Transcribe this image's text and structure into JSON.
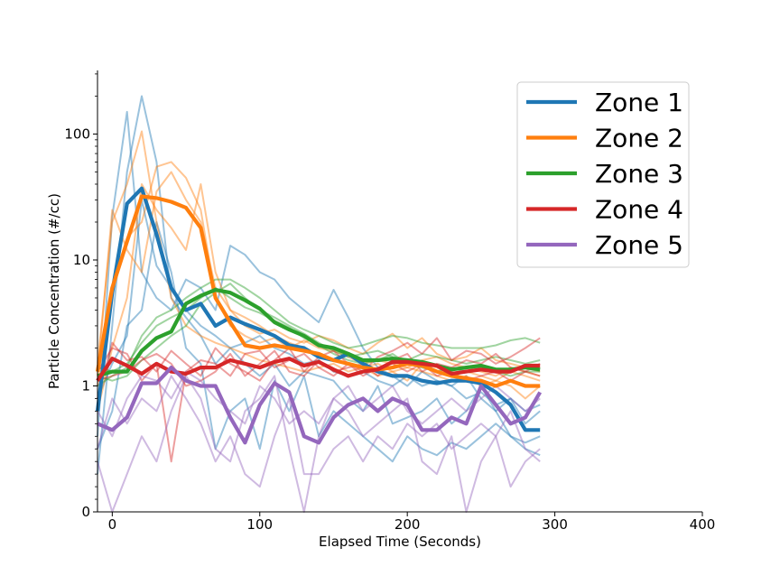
{
  "chart_data": {
    "type": "line",
    "title": "",
    "xlabel": "Elapsed Time (Seconds)",
    "ylabel": "Particle Concentration (#/cc)",
    "xlim": [
      -10,
      400
    ],
    "x_ticks": [
      0,
      100,
      200,
      300,
      400
    ],
    "x_tick_labels": [
      "0",
      "100",
      "200",
      "300",
      "400"
    ],
    "y_scale": "symlog",
    "y_linthresh": 1,
    "y_ticks": [
      0,
      1,
      10,
      100
    ],
    "y_tick_labels": [
      "0",
      "1",
      "10",
      "100"
    ],
    "ylim": [
      0,
      320
    ],
    "grid": false,
    "legend_position": "top-right",
    "x": [
      -10,
      0,
      10,
      20,
      30,
      40,
      50,
      60,
      70,
      80,
      90,
      100,
      110,
      120,
      130,
      140,
      150,
      160,
      170,
      180,
      190,
      200,
      210,
      220,
      230,
      240,
      250,
      260,
      270,
      280,
      290
    ],
    "series": [
      {
        "name": "Zone 1",
        "color": "#1f77b4",
        "values": [
          0.8,
          5.5,
          28,
          37,
          16,
          6,
          4,
          4.5,
          3,
          3.5,
          3.1,
          2.8,
          2.5,
          2.1,
          2.0,
          1.7,
          1.6,
          1.8,
          1.5,
          1.3,
          1.2,
          1.2,
          1.1,
          1.05,
          1.1,
          1.1,
          1.05,
          0.95,
          0.85,
          0.65,
          0.65
        ]
      },
      {
        "name": "Zone 2",
        "color": "#ff7f0e",
        "values": [
          1.3,
          6,
          14,
          32,
          31,
          29,
          26,
          18,
          5,
          3.2,
          2.1,
          2.0,
          2.1,
          2.0,
          1.9,
          1.8,
          1.6,
          1.5,
          1.4,
          1.35,
          1.4,
          1.5,
          1.45,
          1.3,
          1.2,
          1.15,
          1.1,
          1.0,
          1.1,
          1.0,
          1.0
        ]
      },
      {
        "name": "Zone 3",
        "color": "#2ca02c",
        "values": [
          1.2,
          1.3,
          1.3,
          1.9,
          2.4,
          2.7,
          4.5,
          5.2,
          5.8,
          5.5,
          4.8,
          4.1,
          3.2,
          2.8,
          2.5,
          2.1,
          2.0,
          1.8,
          1.6,
          1.6,
          1.65,
          1.6,
          1.55,
          1.45,
          1.35,
          1.4,
          1.45,
          1.35,
          1.35,
          1.4,
          1.35
        ]
      },
      {
        "name": "Zone 4",
        "color": "#d62728",
        "values": [
          1.1,
          1.65,
          1.45,
          1.25,
          1.5,
          1.3,
          1.25,
          1.4,
          1.4,
          1.6,
          1.5,
          1.4,
          1.55,
          1.65,
          1.45,
          1.55,
          1.35,
          1.2,
          1.3,
          1.35,
          1.55,
          1.55,
          1.5,
          1.45,
          1.25,
          1.3,
          1.35,
          1.3,
          1.3,
          1.45,
          1.45
        ]
      },
      {
        "name": "Zone 5",
        "color": "#9467bd",
        "values": [
          0.7,
          0.65,
          0.75,
          1.05,
          1.05,
          1.4,
          1.1,
          1.0,
          1.0,
          0.75,
          0.55,
          0.85,
          1.05,
          0.95,
          0.6,
          0.55,
          0.75,
          0.85,
          0.9,
          0.8,
          0.9,
          0.85,
          0.65,
          0.65,
          0.75,
          0.7,
          1.0,
          0.85,
          0.7,
          0.75,
          0.95
        ]
      }
    ],
    "background_series": [
      {
        "zone": "Zone 1",
        "values": [
          0.3,
          3,
          50,
          200,
          60,
          5,
          3.5,
          2.5,
          1.5,
          2,
          1.5,
          1.2,
          1.5,
          1,
          1.3,
          1.2,
          1.1,
          0.9,
          0.8,
          1.0,
          0.7,
          0.75,
          0.8,
          0.9,
          0.7,
          0.8,
          1.0,
          0.8,
          0.6,
          0.55,
          0.6
        ]
      },
      {
        "zone": "Zone 1",
        "values": [
          0.6,
          22,
          150,
          8,
          5,
          4,
          7,
          6,
          4,
          13,
          11,
          8,
          7,
          5,
          4,
          3.2,
          5.8,
          3.5,
          2,
          1.4,
          1.2,
          1.0,
          1.3,
          1.1,
          1.0,
          1.2,
          0.9,
          0.8,
          0.9,
          0.7,
          0.8
        ]
      },
      {
        "zone": "Zone 1",
        "values": [
          0.5,
          0.8,
          3,
          4,
          20,
          8,
          2,
          1.5,
          0.5,
          0.8,
          0.9,
          0.5,
          1.1,
          0.8,
          1.2,
          0.6,
          0.8,
          0.7,
          0.6,
          0.5,
          0.4,
          0.6,
          0.5,
          0.45,
          0.55,
          0.5,
          0.6,
          0.7,
          0.6,
          0.5,
          0.45
        ]
      },
      {
        "zone": "Zone 1",
        "values": [
          0.9,
          1.5,
          2.5,
          30,
          9,
          6,
          4,
          3,
          2.5,
          2,
          2.2,
          2.5,
          2,
          1.8,
          1.5,
          1.6,
          1.3,
          1.2,
          1.3,
          1.1,
          1.0,
          1.2,
          1.0,
          1.1,
          1.0,
          0.9,
          0.95,
          0.85,
          0.9,
          0.8,
          0.85
        ]
      },
      {
        "zone": "Zone 2",
        "values": [
          1.5,
          20,
          40,
          105,
          20,
          5,
          3,
          2.5,
          2.2,
          2,
          1.8,
          1.6,
          1.5,
          1.4,
          1.3,
          1.4,
          1.5,
          1.3,
          1.4,
          1.2,
          1.3,
          1.1,
          1.5,
          1.4,
          1.2,
          1.3,
          1.2,
          1.1,
          1.3,
          1.2,
          1.1
        ]
      },
      {
        "zone": "Zone 2",
        "values": [
          1.0,
          6,
          15,
          20,
          55,
          60,
          45,
          25,
          5,
          3,
          2.5,
          2.2,
          2.4,
          2,
          2.3,
          2.0,
          1.9,
          1.7,
          1.5,
          1.6,
          1.5,
          1.4,
          1.6,
          1.7,
          1.5,
          1.4,
          1.3,
          1.2,
          1.4,
          1.3,
          1.2
        ]
      },
      {
        "zone": "Zone 2",
        "values": [
          1.2,
          25,
          12,
          8,
          35,
          50,
          30,
          20,
          6,
          4,
          3,
          2.6,
          2.8,
          2.4,
          2.2,
          2.5,
          2.3,
          2.0,
          1.8,
          2.2,
          2.6,
          2.0,
          2.4,
          1.8,
          1.6,
          1.7,
          2.0,
          1.6,
          1.5,
          1.4,
          1.3
        ]
      },
      {
        "zone": "Zone 2",
        "values": [
          0.8,
          2,
          5,
          40,
          25,
          18,
          12,
          40,
          8,
          4,
          3.5,
          3,
          2.5,
          2.2,
          2.0,
          1.8,
          1.6,
          1.5,
          1.4,
          1.5,
          1.3,
          1.4,
          1.3,
          1.2,
          1.1,
          1.2,
          1.0,
          1.1,
          1.0,
          0.9,
          1.0
        ]
      },
      {
        "zone": "Zone 3",
        "values": [
          1.0,
          1.2,
          1.4,
          2.5,
          3.5,
          4,
          5,
          6,
          7,
          7,
          6,
          5,
          4,
          3.2,
          2.8,
          2.5,
          2.2,
          2.0,
          2.1,
          2.3,
          2.5,
          2.4,
          2.2,
          2.1,
          2.0,
          2.0,
          2.0,
          2.1,
          2.3,
          2.4,
          2.2
        ]
      },
      {
        "zone": "Zone 3",
        "values": [
          1.2,
          1.1,
          1.2,
          1.6,
          2,
          2.5,
          3,
          4.5,
          5.5,
          6.5,
          5,
          4,
          3.5,
          3,
          2.6,
          2.2,
          1.9,
          1.7,
          1.8,
          1.9,
          1.7,
          1.6,
          1.8,
          1.7,
          1.6,
          1.5,
          1.6,
          1.7,
          1.6,
          1.5,
          1.6
        ]
      },
      {
        "zone": "Zone 3",
        "values": [
          1.4,
          1.3,
          1.5,
          2.2,
          3,
          3.5,
          4,
          5,
          6,
          5,
          4.2,
          3.8,
          3.3,
          2.9,
          2.4,
          2.1,
          1.8,
          1.6,
          1.5,
          1.6,
          1.8,
          1.5,
          1.4,
          1.3,
          1.4,
          1.3,
          1.4,
          1.3,
          1.2,
          1.3,
          1.3
        ]
      },
      {
        "zone": "Zone 4",
        "values": [
          1.3,
          2.0,
          1.8,
          1.1,
          1.5,
          0.4,
          1.3,
          1.6,
          1.5,
          1.2,
          1.8,
          1.9,
          1.4,
          1.6,
          1.8,
          1.4,
          1.2,
          1.5,
          1.3,
          1.7,
          1.9,
          2.2,
          1.8,
          2.4,
          1.6,
          1.9,
          1.8,
          1.5,
          1.7,
          2.0,
          2.4
        ]
      },
      {
        "zone": "Zone 4",
        "values": [
          0.9,
          2.2,
          1.6,
          1.7,
          1.3,
          1.9,
          1.5,
          1.2,
          2.0,
          1.5,
          1.3,
          1.1,
          1.6,
          2.0,
          1.3,
          1.7,
          1.9,
          1.5,
          1.2,
          1.4,
          1.5,
          1.3,
          1.5,
          1.2,
          1.3,
          1.1,
          1.2,
          1.3,
          1.1,
          1.3,
          1.2
        ]
      },
      {
        "zone": "Zone 4",
        "values": [
          1.1,
          1.2,
          1.3,
          1.6,
          1.8,
          1.5,
          1.0,
          1.1,
          1.3,
          1.8,
          1.2,
          1.5,
          1.9,
          1.3,
          1.2,
          1.6,
          1.3,
          1.4,
          1.5,
          1.2,
          1.6,
          1.8,
          1.3,
          1.5,
          1.4,
          1.6,
          1.5,
          1.8,
          1.4,
          1.3,
          1.5
        ]
      },
      {
        "zone": "Zone 5",
        "values": [
          0.4,
          0,
          0.3,
          0.6,
          0.4,
          0.8,
          1.2,
          0.9,
          0.5,
          0.4,
          0.8,
          0.9,
          1.2,
          0.5,
          0,
          0.6,
          0.9,
          0.8,
          0.6,
          0.7,
          0.8,
          0.9,
          0.4,
          0.3,
          0.6,
          0,
          0.4,
          0.6,
          0.8,
          0.5,
          0.4
        ]
      },
      {
        "zone": "Zone 5",
        "values": [
          0.5,
          0.9,
          0.7,
          0.9,
          0.8,
          1.2,
          0.9,
          0.7,
          0.4,
          0.6,
          0.3,
          0.2,
          0.6,
          0.9,
          0.3,
          0.3,
          0.5,
          0.6,
          0.4,
          0.6,
          0.5,
          0.7,
          0.6,
          0.7,
          0.5,
          0.6,
          0.7,
          0.6,
          0.2,
          0.4,
          0.5
        ]
      },
      {
        "zone": "Zone 5",
        "values": [
          0.8,
          0.6,
          0.9,
          1.2,
          1.1,
          0.9,
          1.3,
          1.1,
          0.9,
          0.8,
          0.7,
          1.0,
          0.9,
          0.7,
          0.8,
          0.7,
          0.9,
          1.0,
          0.8,
          0.9,
          1.0,
          0.8,
          0.7,
          0.8,
          0.9,
          0.8,
          0.9,
          1.0,
          0.9,
          0.8,
          0.9
        ]
      }
    ]
  }
}
